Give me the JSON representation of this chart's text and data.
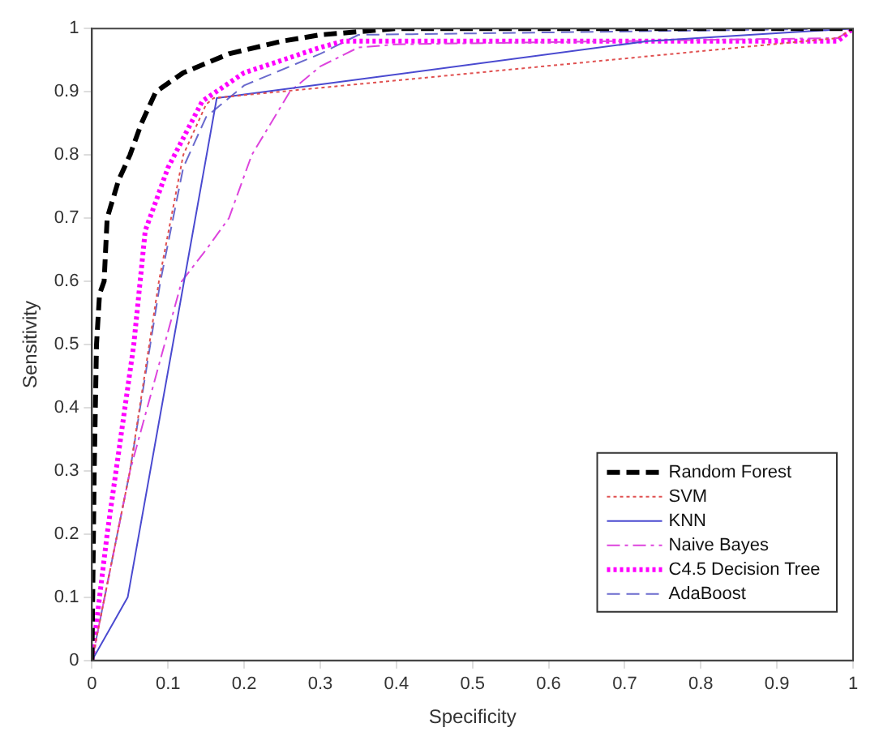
{
  "chart_data": {
    "type": "line",
    "xlabel": "Specificity",
    "ylabel": "Sensitivity",
    "xlim": [
      0,
      1
    ],
    "ylim": [
      0,
      1
    ],
    "xticks": [
      0,
      0.1,
      0.2,
      0.3,
      0.4,
      0.5,
      0.6,
      0.7,
      0.8,
      0.9,
      1
    ],
    "yticks": [
      0,
      0.1,
      0.2,
      0.3,
      0.4,
      0.5,
      0.6,
      0.7,
      0.8,
      0.9,
      1
    ],
    "grid": false,
    "legend": "bottom right",
    "marker": "none",
    "series": [
      {
        "name": "Random Forest",
        "color": "#000000",
        "line_style": "dashed",
        "x": [
          0,
          0.003,
          0.006,
          0.01,
          0.016,
          0.02,
          0.035,
          0.05,
          0.065,
          0.084,
          0.12,
          0.18,
          0.25,
          0.3,
          0.4,
          1
        ],
        "values": [
          0,
          0.3,
          0.5,
          0.58,
          0.6,
          0.7,
          0.76,
          0.8,
          0.85,
          0.9,
          0.93,
          0.96,
          0.98,
          0.99,
          1,
          1
        ]
      },
      {
        "name": "SVM",
        "color": "#e05050",
        "line_style": "dotted",
        "x": [
          0,
          0.05,
          0.088,
          0.12,
          0.15,
          0.16,
          0.98,
          1
        ],
        "values": [
          0,
          0.3,
          0.6,
          0.8,
          0.88,
          0.89,
          0.985,
          1
        ]
      },
      {
        "name": "KNN",
        "color": "#4a4ad0",
        "line_style": "solid",
        "x": [
          0,
          0.047,
          0.164,
          0.73,
          1
        ],
        "values": [
          0,
          0.1,
          0.89,
          0.98,
          1
        ]
      },
      {
        "name": "Naive Bayes",
        "color": "#dd44dd",
        "line_style": "dashdot",
        "x": [
          0,
          0.05,
          0.118,
          0.15,
          0.18,
          0.21,
          0.26,
          0.3,
          0.35,
          0.4,
          0.98,
          1
        ],
        "values": [
          0,
          0.3,
          0.6,
          0.65,
          0.7,
          0.8,
          0.9,
          0.94,
          0.97,
          0.975,
          0.985,
          1
        ]
      },
      {
        "name": "C4.5 Decision Tree",
        "color": "#ff00ff",
        "line_style": "dotted",
        "x": [
          0,
          0.02,
          0.055,
          0.07,
          0.1,
          0.145,
          0.2,
          0.3,
          0.33,
          0.98,
          1
        ],
        "values": [
          0,
          0.2,
          0.5,
          0.68,
          0.78,
          0.885,
          0.93,
          0.97,
          0.98,
          0.98,
          1
        ]
      },
      {
        "name": "AdaBoost",
        "color": "#6a6acd",
        "line_style": "dashed",
        "x": [
          0,
          0.05,
          0.09,
          0.12,
          0.15,
          0.2,
          0.3,
          0.35,
          1
        ],
        "values": [
          0,
          0.3,
          0.6,
          0.78,
          0.86,
          0.91,
          0.96,
          0.99,
          1
        ]
      }
    ]
  }
}
